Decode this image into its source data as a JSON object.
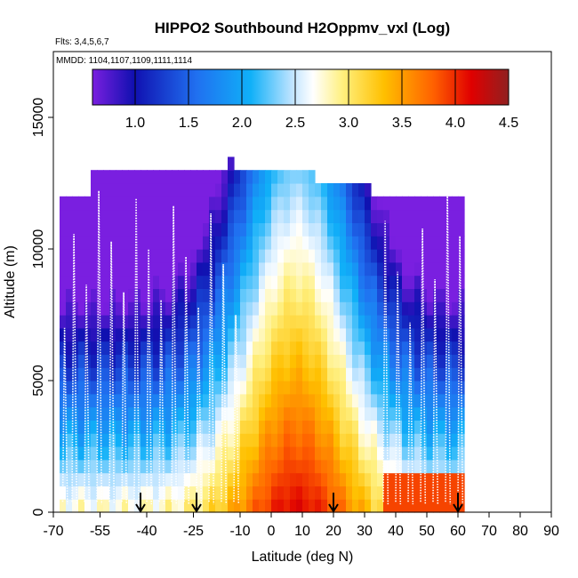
{
  "chart_data": {
    "type": "heatmap",
    "title": "HIPPO2 Southbound H2Oppmv_vxl (Log)",
    "subtitle": "Flts: 3,4,5,6,7",
    "annotation": "MMDD: 1104,1107,1109,1111,1114",
    "xlabel": "Latitude (deg N)",
    "ylabel": "Altitude (m)",
    "xlim": [
      -70,
      90
    ],
    "ylim": [
      0,
      17500
    ],
    "x_ticks": [
      -70,
      -55,
      -40,
      -25,
      -10,
      0,
      10,
      20,
      30,
      40,
      50,
      60,
      70,
      80,
      90
    ],
    "x_tick_labels": [
      "-70",
      "-55",
      "-40",
      "-25",
      "-10",
      "0",
      "10",
      "20",
      "30",
      "40",
      "50",
      "60",
      "70",
      "80",
      "90"
    ],
    "y_ticks": [
      0,
      5000,
      10000,
      15000
    ],
    "y_tick_labels": [
      "0",
      "5000",
      "10000",
      "15000"
    ],
    "colorbar": {
      "min": 0.6,
      "max": 4.5,
      "ticks": [
        1.0,
        1.5,
        2.0,
        2.5,
        3.0,
        3.5,
        4.0,
        4.5
      ],
      "tick_labels": [
        "1.0",
        "1.5",
        "2.0",
        "2.5",
        "3.0",
        "3.5",
        "4.0",
        "4.5"
      ],
      "colors": [
        "#7a1fe0",
        "#1010b0",
        "#2070f0",
        "#10b0f8",
        "#c0e4ff",
        "#ffffff",
        "#fff080",
        "#ffc000",
        "#ff6000",
        "#e00000",
        "#902020"
      ]
    },
    "grid": false,
    "arrows_at_lat": [
      -42,
      -24,
      20,
      60
    ],
    "profile_lats": [
      -67,
      -64,
      -60,
      -56,
      -52,
      -48,
      -44,
      -40,
      -36,
      -32,
      -28,
      -24,
      -20,
      -16,
      -12,
      36,
      40,
      44,
      48,
      52,
      56,
      60
    ],
    "altitude_levels_m": [
      0,
      500,
      1000,
      1500,
      2000,
      2500,
      3000,
      3500,
      4000,
      4500,
      5000,
      5500,
      6000,
      6500,
      7000,
      7500,
      8000,
      8500,
      9000,
      9500,
      10000,
      10500,
      11000,
      11500,
      12000,
      12500,
      13000
    ]
  }
}
